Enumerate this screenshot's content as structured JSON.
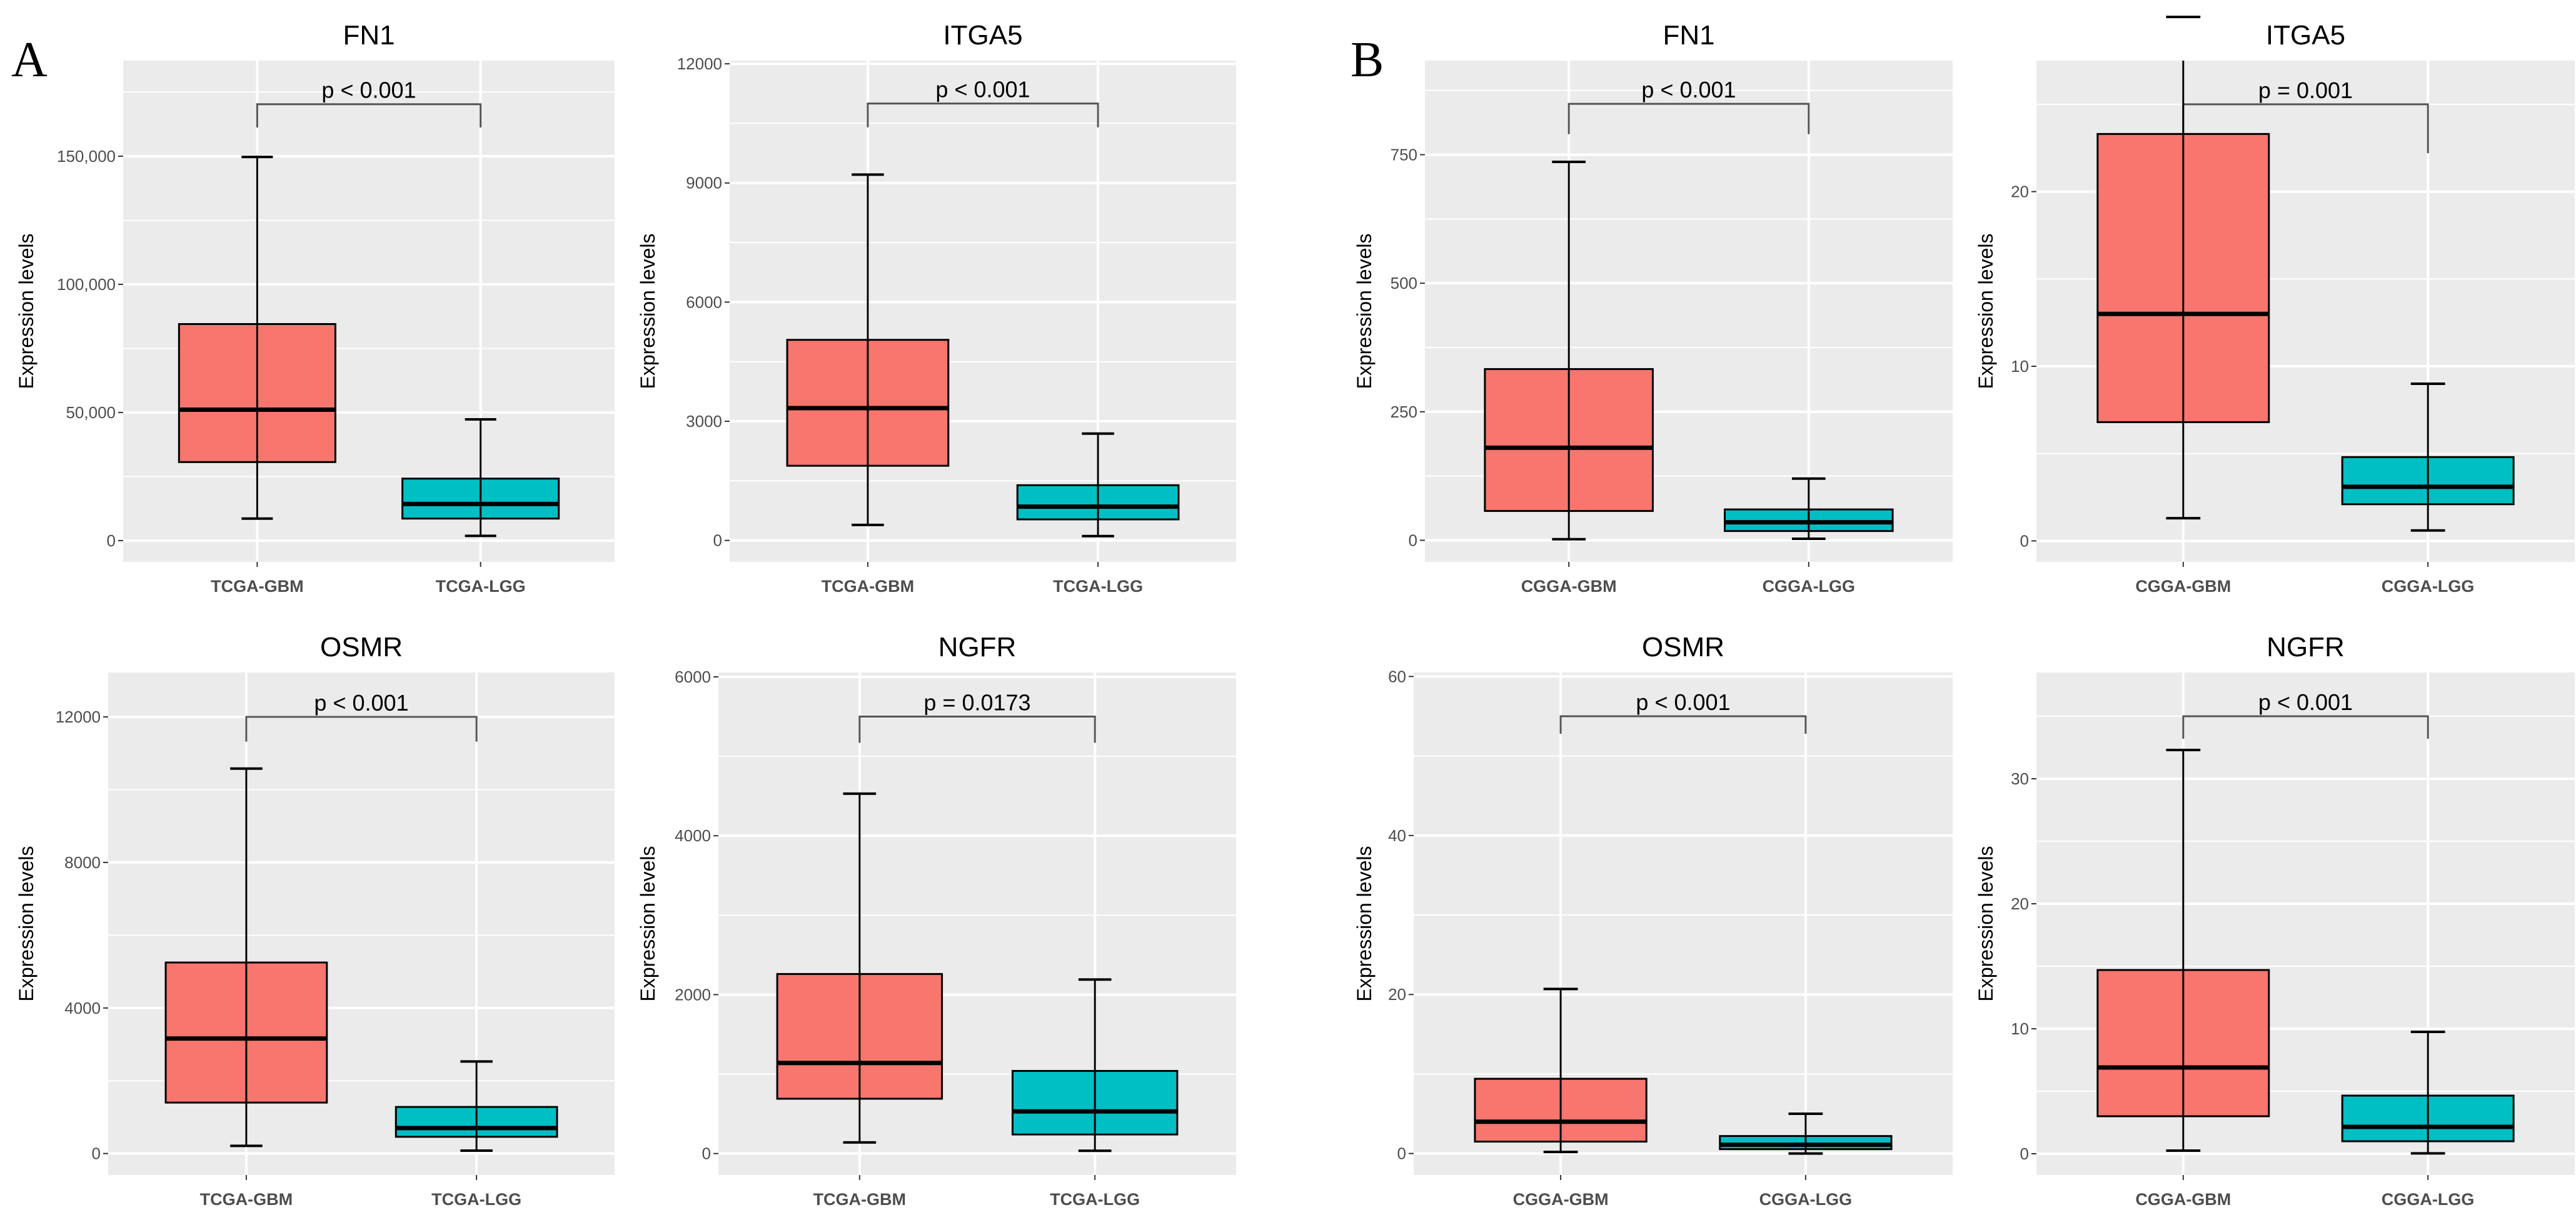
{
  "panel_labels": [
    "A",
    "B"
  ],
  "colors": {
    "GBM": "#F8766D",
    "LGG": "#00BFC4",
    "panel_bg": "#EBEBEB",
    "grid": "#FFFFFF"
  },
  "chart_data": [
    {
      "type": "box",
      "group": "A",
      "title": "FN1",
      "ylabel": "Expression levels",
      "categories": [
        "TCGA-GBM",
        "TCGA-LGG"
      ],
      "ylim": [
        -8300,
        187300
      ],
      "yticks": [
        0,
        50000,
        100000,
        150000
      ],
      "ytick_labels": [
        "0",
        "50,000",
        "100,000",
        "150,000"
      ],
      "boxes": [
        {
          "min": 8600,
          "q1": 30650,
          "median": 51100,
          "q3": 84500,
          "max": 149700
        },
        {
          "min": 1850,
          "q1": 8600,
          "median": 14300,
          "q3": 24200,
          "max": 47300
        }
      ],
      "pvalue": "p < 0.001",
      "bracket": {
        "y": 170300,
        "tail_left": 161200,
        "tail_right": 161200
      }
    },
    {
      "type": "box",
      "group": "A",
      "title": "ITGA5",
      "ylabel": "Expression levels",
      "categories": [
        "TCGA-GBM",
        "TCGA-LGG"
      ],
      "ylim": [
        -540,
        12080
      ],
      "yticks": [
        0,
        3000,
        6000,
        9000,
        12000
      ],
      "ytick_labels": [
        "0",
        "3000",
        "6000",
        "9000",
        "12000"
      ],
      "boxes": [
        {
          "min": 390,
          "q1": 1880,
          "median": 3330,
          "q3": 5050,
          "max": 9210
        },
        {
          "min": 110,
          "q1": 530,
          "median": 850,
          "q3": 1390,
          "max": 2690
        }
      ],
      "pvalue": "p < 0.001",
      "bracket": {
        "y": 11000,
        "tail_left": 10400,
        "tail_right": 10400
      }
    },
    {
      "type": "box",
      "group": "B",
      "title": "FN1",
      "ylabel": "Expression levels",
      "categories": [
        "CGGA-GBM",
        "CGGA-LGG"
      ],
      "ylim": [
        -42,
        933
      ],
      "yticks": [
        0,
        250,
        500,
        750
      ],
      "ytick_labels": [
        "0",
        "250",
        "500",
        "750"
      ],
      "boxes": [
        {
          "min": 2,
          "q1": 57,
          "median": 180,
          "q3": 333,
          "max": 736
        },
        {
          "min": 3,
          "q1": 18,
          "median": 35,
          "q3": 60,
          "max": 120
        }
      ],
      "pvalue": "p < 0.001",
      "bracket": {
        "y": 849,
        "tail_left": 790,
        "tail_right": 790
      }
    },
    {
      "type": "box",
      "group": "B",
      "title": "ITGA5",
      "ylabel": "Expression levels",
      "categories": [
        "CGGA-GBM",
        "CGGA-LGG"
      ],
      "ylim": [
        -1.2,
        27.5
      ],
      "yticks": [
        0,
        10,
        20
      ],
      "ytick_labels": [
        "0",
        "10",
        "20"
      ],
      "boxes": [
        {
          "min": 1.3,
          "q1": 6.8,
          "median": 13.0,
          "q3": 23.3,
          "max": 30
        },
        {
          "min": 0.6,
          "q1": 2.1,
          "median": 3.1,
          "q3": 4.8,
          "max": 9.0
        }
      ],
      "pvalue": "p = 0.001",
      "bracket": {
        "y": 25.0,
        "tail_left": 22.2,
        "tail_right": 22.2
      }
    },
    {
      "type": "box",
      "group": "A",
      "title": "OSMR",
      "ylabel": "Expression levels",
      "categories": [
        "TCGA-GBM",
        "TCGA-LGG"
      ],
      "ylim": [
        -590,
        13220
      ],
      "yticks": [
        0,
        4000,
        8000,
        12000
      ],
      "ytick_labels": [
        "0",
        "4000",
        "8000",
        "12000"
      ],
      "boxes": [
        {
          "min": 210,
          "q1": 1400,
          "median": 3160,
          "q3": 5250,
          "max": 10580
        },
        {
          "min": 80,
          "q1": 460,
          "median": 700,
          "q3": 1280,
          "max": 2530
        }
      ],
      "pvalue": "p < 0.001",
      "bracket": {
        "y": 12000,
        "tail_left": 11320,
        "tail_right": 11320
      }
    },
    {
      "type": "box",
      "group": "A",
      "title": "NGFR",
      "ylabel": "Expression levels",
      "categories": [
        "TCGA-GBM",
        "TCGA-LGG"
      ],
      "ylim": [
        -270,
        6055
      ],
      "yticks": [
        0,
        2000,
        4000,
        6000
      ],
      "ytick_labels": [
        "0",
        "2000",
        "4000",
        "6000"
      ],
      "boxes": [
        {
          "min": 140,
          "q1": 690,
          "median": 1140,
          "q3": 2260,
          "max": 4530
        },
        {
          "min": 35,
          "q1": 240,
          "median": 530,
          "q3": 1040,
          "max": 2190
        }
      ],
      "pvalue": "p = 0.0173",
      "bracket": {
        "y": 5500,
        "tail_left": 5170,
        "tail_right": 5170
      }
    },
    {
      "type": "box",
      "group": "B",
      "title": "OSMR",
      "ylabel": "Expression levels",
      "categories": [
        "CGGA-GBM",
        "CGGA-LGG"
      ],
      "ylim": [
        -2.7,
        60.5
      ],
      "yticks": [
        0,
        20,
        40,
        60
      ],
      "ytick_labels": [
        "0",
        "20",
        "40",
        "60"
      ],
      "boxes": [
        {
          "min": 0.2,
          "q1": 1.5,
          "median": 4.0,
          "q3": 9.4,
          "max": 20.7
        },
        {
          "min": 0,
          "q1": 0.55,
          "median": 1.1,
          "q3": 2.2,
          "max": 5.0
        }
      ],
      "pvalue": "p < 0.001",
      "bracket": {
        "y": 55,
        "tail_left": 52.8,
        "tail_right": 52.8
      }
    },
    {
      "type": "box",
      "group": "B",
      "title": "NGFR",
      "ylabel": "Expression levels",
      "categories": [
        "CGGA-GBM",
        "CGGA-LGG"
      ],
      "ylim": [
        -1.7,
        38.5
      ],
      "yticks": [
        0,
        10,
        20,
        30
      ],
      "ytick_labels": [
        "0",
        "10",
        "20",
        "30"
      ],
      "boxes": [
        {
          "min": 0.25,
          "q1": 3.0,
          "median": 6.9,
          "q3": 14.7,
          "max": 32.3
        },
        {
          "min": 0.03,
          "q1": 1.0,
          "median": 2.15,
          "q3": 4.65,
          "max": 9.75
        }
      ],
      "pvalue": "p < 0.001",
      "bracket": {
        "y": 35,
        "tail_left": 33.2,
        "tail_right": 33.2
      }
    }
  ]
}
